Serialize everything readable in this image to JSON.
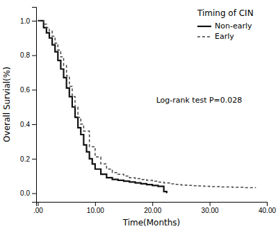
{
  "chart_data": {
    "type": "step",
    "xlabel": "Time(Months)",
    "ylabel": "Overall Survial(%)",
    "xlim": [
      -0.3,
      40
    ],
    "ylim": [
      -0.05,
      1.08
    ],
    "xticks": [
      {
        "value": 0,
        "label": ".00"
      },
      {
        "value": 10,
        "label": "10.00"
      },
      {
        "value": 20,
        "label": "20.00"
      },
      {
        "value": 30,
        "label": "30.00"
      },
      {
        "value": 40,
        "label": "40.00"
      }
    ],
    "yticks": [
      {
        "value": 0.0,
        "label": "0.0"
      },
      0.2,
      0.4,
      0.6,
      0.8,
      {
        "value": 1.0,
        "label": "1.0"
      }
    ],
    "grid": false,
    "legend": "upper right",
    "legend_title": "Timing of CIN",
    "annotation": "Log-rank test P=0.028",
    "series": [
      {
        "name": "Non-early",
        "color": "#111111",
        "line_style": "solid",
        "x": [
          0,
          0.5,
          1.0,
          1.5,
          2.0,
          2.5,
          3.0,
          3.5,
          4.0,
          4.5,
          5.0,
          5.5,
          6.0,
          6.5,
          7.0,
          7.5,
          8.0,
          8.5,
          9.0,
          9.5,
          10.0,
          11.0,
          12.0,
          13.0,
          14.0,
          15.0,
          16.0,
          17.0,
          18.0,
          19.0,
          20.0,
          21.0,
          22.0,
          22.5
        ],
        "values": [
          1.0,
          1.0,
          0.96,
          0.93,
          0.9,
          0.86,
          0.82,
          0.77,
          0.72,
          0.67,
          0.61,
          0.56,
          0.5,
          0.44,
          0.38,
          0.34,
          0.28,
          0.24,
          0.2,
          0.17,
          0.14,
          0.11,
          0.09,
          0.08,
          0.075,
          0.07,
          0.065,
          0.06,
          0.055,
          0.05,
          0.045,
          0.04,
          0.01,
          0.0
        ]
      },
      {
        "name": "Early",
        "color": "#444444",
        "line_style": "dashed",
        "x": [
          0,
          1.0,
          1.5,
          2.0,
          2.5,
          3.0,
          3.5,
          4.0,
          4.5,
          5.0,
          5.5,
          6.0,
          6.5,
          7.0,
          7.5,
          8.0,
          9.0,
          10.0,
          11.0,
          12.0,
          13.0,
          14.0,
          15.0,
          16.0,
          17.0,
          18.0,
          19.0,
          20.0,
          21.0,
          22.0,
          23.0,
          24.0,
          25.0,
          26.0,
          27.0,
          28.0,
          29.0,
          30.0,
          32.0,
          34.0,
          36.0,
          38.0
        ],
        "values": [
          1.0,
          0.98,
          0.96,
          0.94,
          0.91,
          0.87,
          0.83,
          0.79,
          0.74,
          0.68,
          0.62,
          0.56,
          0.5,
          0.44,
          0.4,
          0.36,
          0.27,
          0.21,
          0.17,
          0.14,
          0.12,
          0.11,
          0.1,
          0.09,
          0.085,
          0.08,
          0.075,
          0.07,
          0.065,
          0.06,
          0.055,
          0.052,
          0.048,
          0.046,
          0.044,
          0.042,
          0.04,
          0.038,
          0.036,
          0.034,
          0.032,
          0.03
        ]
      }
    ]
  }
}
